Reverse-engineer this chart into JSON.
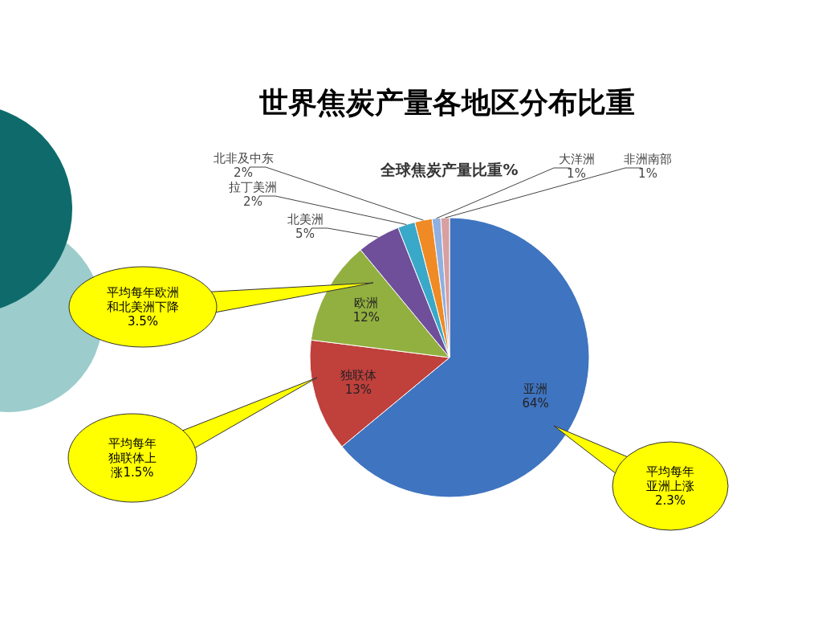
{
  "chart_data": {
    "type": "pie",
    "title": "世界焦炭产量各地区分布比重",
    "subtitle": "全球焦炭产量比重%",
    "categories": [
      "亚洲",
      "独联体",
      "欧洲",
      "北美洲",
      "拉丁美洲",
      "北非及中东",
      "大洋洲",
      "非洲南部"
    ],
    "values": [
      64,
      13,
      12,
      5,
      2,
      2,
      1,
      1
    ],
    "colors": [
      "#3f74c0",
      "#c0403c",
      "#92b040",
      "#6f4f9a",
      "#3aa8c8",
      "#f08a24",
      "#8fb0e0",
      "#d8a0a0"
    ],
    "value_labels": [
      "64%",
      "13%",
      "12%",
      "5%",
      "2%",
      "2%",
      "1%",
      "1%"
    ],
    "annotations": [
      "平均每年欧洲和北美洲下降3.5%",
      "平均每年独联体上涨1.5%",
      "平均每年亚洲上涨2.3%"
    ]
  }
}
